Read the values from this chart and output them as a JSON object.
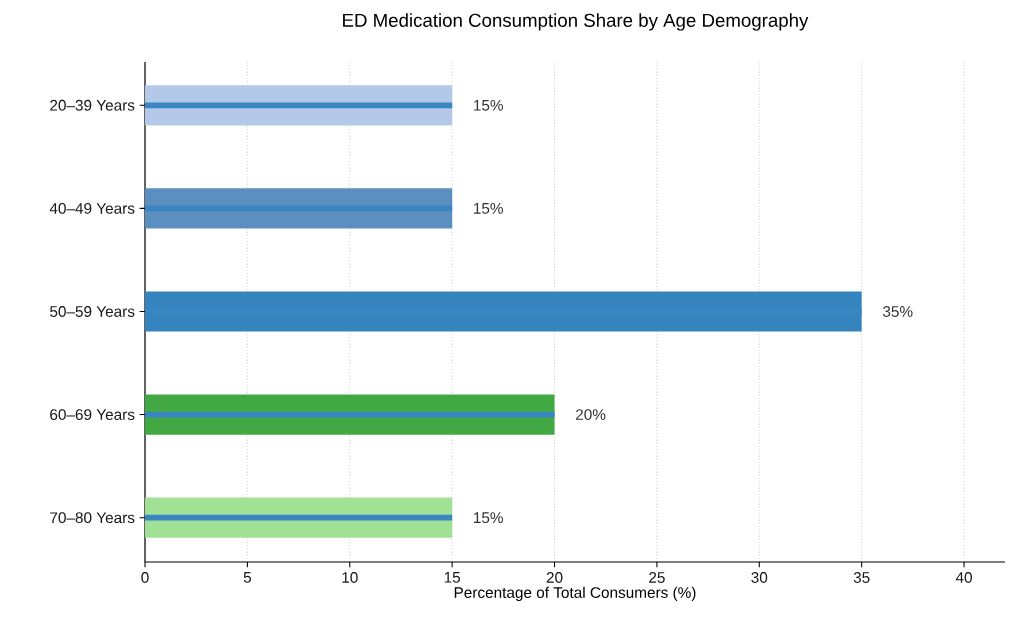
{
  "chart_data": {
    "type": "bar",
    "orientation": "horizontal",
    "title": "ED Medication Consumption Share by Age Demography",
    "xlabel": "Percentage of Total Consumers (%)",
    "categories": [
      "20–39 Years",
      "40–49 Years",
      "50–59 Years",
      "60–69 Years",
      "70–80 Years"
    ],
    "series": [
      {
        "type": "bar",
        "colors": [
          "#b4c9ea",
          "#5a8fbf",
          "#3584c0",
          "#42a843",
          "#a0e196"
        ],
        "values": [
          15,
          15,
          35,
          20,
          15
        ],
        "value_labels": [
          "15%",
          "15%",
          "35%",
          "20%",
          "15%"
        ]
      },
      {
        "color": "#3a86c3",
        "values": [
          15,
          15,
          35,
          20,
          15
        ]
      }
    ],
    "xlim": [
      0,
      42
    ],
    "xticks": [
      0,
      5,
      10,
      15,
      20,
      25,
      30,
      35,
      40
    ],
    "grid": "x"
  }
}
